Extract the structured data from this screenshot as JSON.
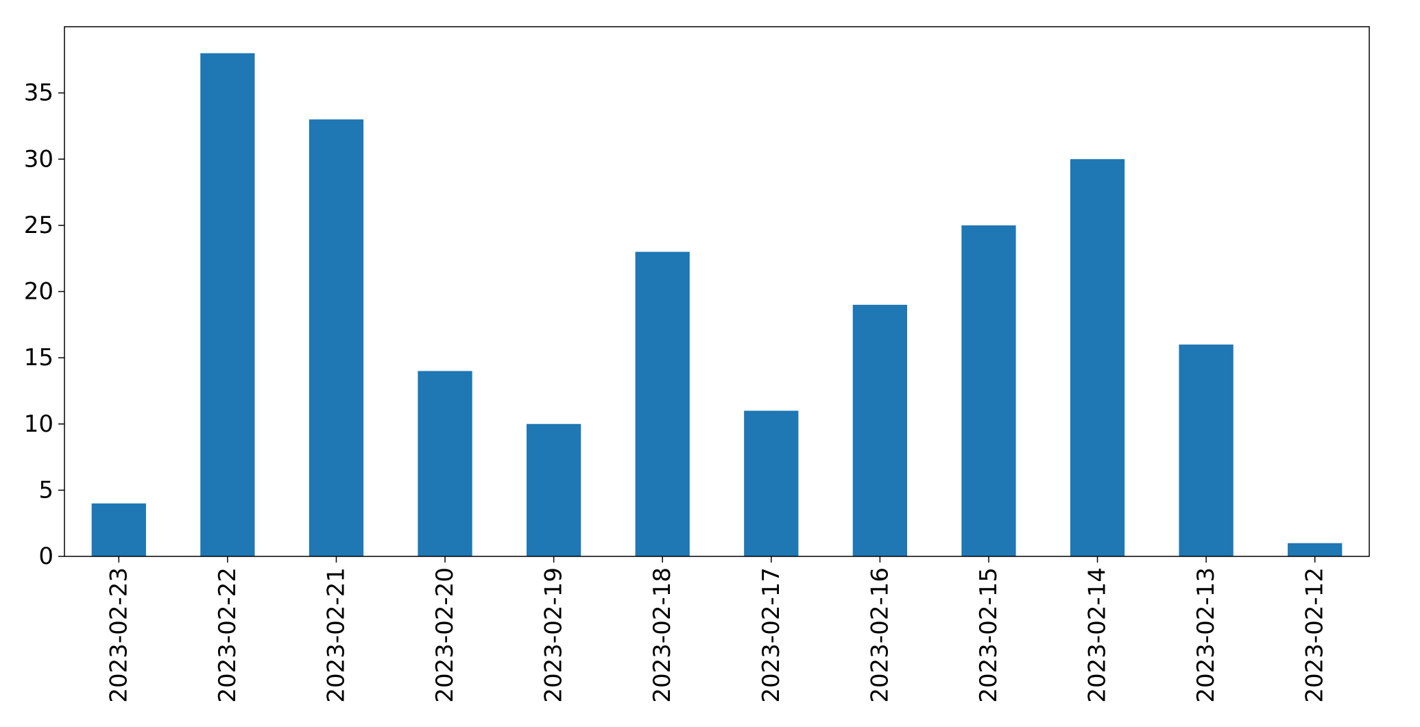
{
  "chart_data": {
    "type": "bar",
    "title": "",
    "xlabel": "",
    "ylabel": "",
    "categories": [
      "2023-02-23",
      "2023-02-22",
      "2023-02-21",
      "2023-02-20",
      "2023-02-19",
      "2023-02-18",
      "2023-02-17",
      "2023-02-16",
      "2023-02-15",
      "2023-02-14",
      "2023-02-13",
      "2023-02-12"
    ],
    "values": [
      4,
      38,
      33,
      14,
      10,
      23,
      11,
      19,
      25,
      30,
      16,
      1
    ],
    "ylim": [
      0,
      40
    ],
    "yticks": [
      0,
      5,
      10,
      15,
      20,
      25,
      30,
      35
    ],
    "grid": false,
    "legend": "none",
    "bar_color": "#1f77b4"
  }
}
